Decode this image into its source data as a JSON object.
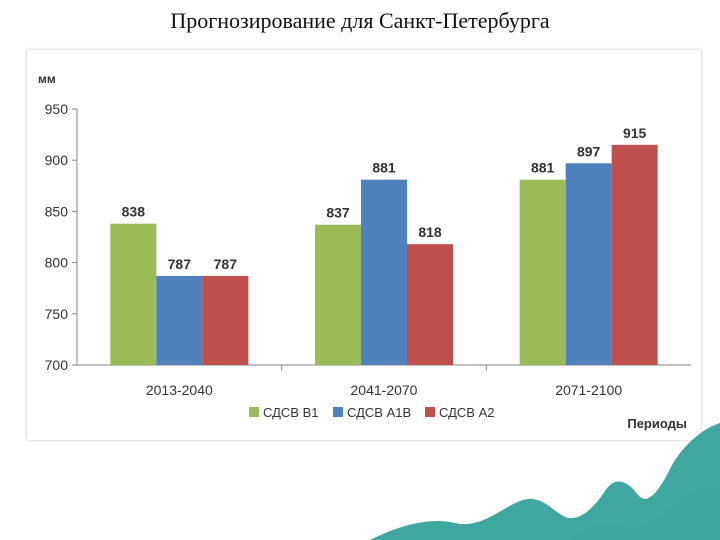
{
  "slide": {
    "title": "Прогнозирование для Санкт-Петербурга"
  },
  "chart_data": {
    "type": "bar",
    "title": "",
    "ylabel": "мм",
    "xlabel": "Периоды",
    "ylim": [
      700,
      950
    ],
    "yticks": [
      700,
      750,
      800,
      850,
      900,
      950
    ],
    "categories": [
      "2013-2040",
      "2041-2070",
      "2071-2100"
    ],
    "series": [
      {
        "name": "СДСВ В1",
        "color": "#9BBB59",
        "values": [
          838,
          837,
          881
        ]
      },
      {
        "name": "СДСВ А1В",
        "color": "#4F81BD",
        "values": [
          787,
          881,
          897
        ]
      },
      {
        "name": "СДСВ А2",
        "color": "#C0504D",
        "values": [
          787,
          818,
          915
        ]
      }
    ],
    "data_labels": true,
    "grid": false,
    "legend_position": "bottom"
  },
  "decoration": {
    "wave_color": "#3FA6A0"
  }
}
